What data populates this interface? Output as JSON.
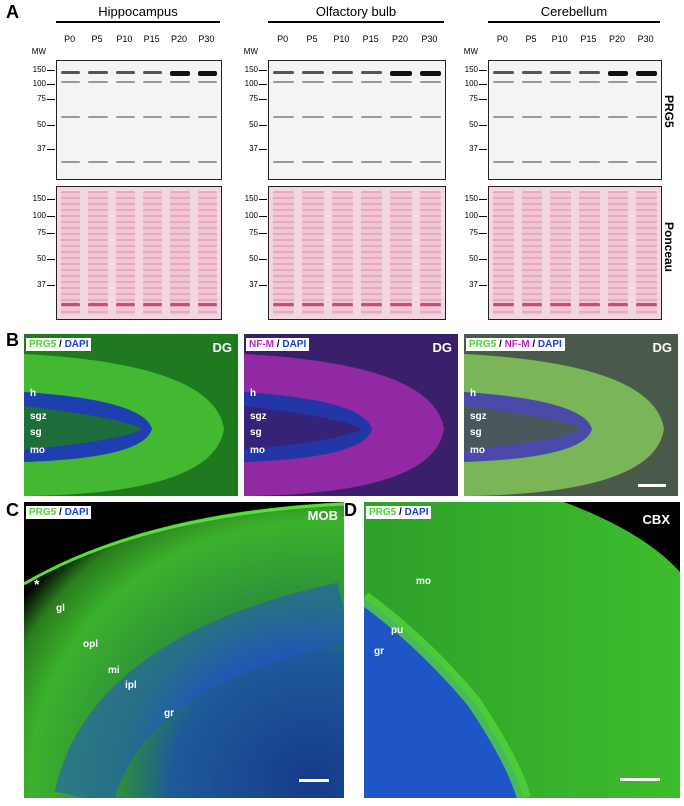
{
  "panel_a": {
    "letter": "A",
    "regions": [
      {
        "title": "Hippocampus",
        "key": "hippo"
      },
      {
        "title": "Olfactory bulb",
        "key": "olf"
      },
      {
        "title": "Cerebellum",
        "key": "cb"
      }
    ],
    "lanes": [
      "P0",
      "P5",
      "P10",
      "P15",
      "P20",
      "P30"
    ],
    "mw_header": "MW",
    "mw_blot": [
      "150",
      "100",
      "75",
      "50",
      "37"
    ],
    "mw_ponceau": [
      "150",
      "100",
      "75",
      "50",
      "37"
    ],
    "row_labels": {
      "blot": "PRG5",
      "ponceau": "Ponceau"
    }
  },
  "panel_b": {
    "letter": "B",
    "images": [
      {
        "legend": [
          "PRG5",
          " / ",
          "DAPI"
        ],
        "colors": [
          "#4bd32f",
          "#000000",
          "#1b3ed6"
        ],
        "region": "DG"
      },
      {
        "legend": [
          "NF-M",
          " / ",
          "DAPI"
        ],
        "colors": [
          "#c020c0",
          "#000000",
          "#1b3ed6"
        ],
        "region": "DG"
      },
      {
        "legend": [
          "PRG5",
          " / ",
          "NF-M",
          " / ",
          "DAPI"
        ],
        "colors": [
          "#4bd32f",
          "#000000",
          "#c020c0",
          "#000000",
          "#1b3ed6"
        ],
        "region": "DG"
      }
    ],
    "layer_labels": [
      "h",
      "sgz",
      "sg",
      "mo"
    ]
  },
  "panel_c": {
    "letter": "C",
    "legend": [
      "PRG5",
      " / ",
      "DAPI"
    ],
    "colors": [
      "#4bd32f",
      "#000000",
      "#1b3ed6"
    ],
    "region": "MOB",
    "asterisk": "*",
    "labels": [
      "gl",
      "opl",
      "mi",
      "ipl",
      "gr"
    ]
  },
  "panel_d": {
    "letter": "D",
    "legend": [
      "PRG5",
      " / ",
      "DAPI"
    ],
    "colors": [
      "#4bd32f",
      "#000000",
      "#1b3ed6"
    ],
    "region": "CBX",
    "labels": [
      "mo",
      "pu",
      "gr"
    ]
  }
}
